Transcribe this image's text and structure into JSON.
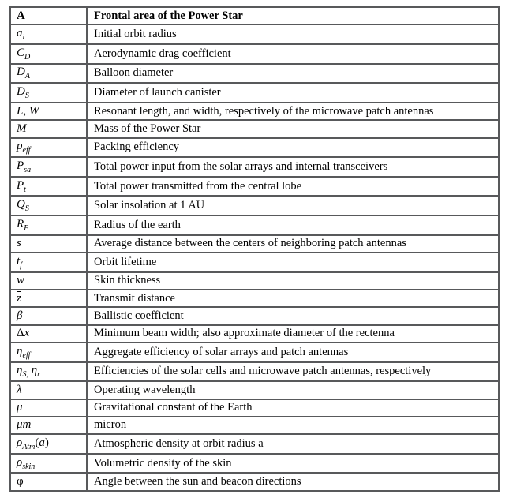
{
  "table": {
    "border_color": "#58595b",
    "text_color": "#000000",
    "header": {
      "symbol": [
        {
          "t": "n",
          "v": "A"
        }
      ],
      "description": "Frontal area of the Power Star"
    },
    "rows": [
      {
        "symbol": [
          {
            "t": "i",
            "v": "a"
          },
          {
            "t": "sub",
            "v": "i"
          }
        ],
        "description": "Initial orbit radius"
      },
      {
        "symbol": [
          {
            "t": "i",
            "v": "C"
          },
          {
            "t": "sub",
            "v": "D"
          }
        ],
        "description": "Aerodynamic drag coefficient"
      },
      {
        "symbol": [
          {
            "t": "i",
            "v": "D"
          },
          {
            "t": "sub",
            "v": "A"
          }
        ],
        "description": "Balloon diameter"
      },
      {
        "symbol": [
          {
            "t": "i",
            "v": "D"
          },
          {
            "t": "sub",
            "v": "S"
          }
        ],
        "description": "Diameter of launch canister"
      },
      {
        "symbol": [
          {
            "t": "i",
            "v": "L"
          },
          {
            "t": "n",
            "v": ", "
          },
          {
            "t": "i",
            "v": "W"
          }
        ],
        "description": "Resonant length, and width, respectively of the microwave patch antennas"
      },
      {
        "symbol": [
          {
            "t": "i",
            "v": "M"
          }
        ],
        "description": "Mass of the Power Star"
      },
      {
        "symbol": [
          {
            "t": "i",
            "v": "p"
          },
          {
            "t": "sub",
            "v": "eff"
          }
        ],
        "description": "Packing efficiency"
      },
      {
        "symbol": [
          {
            "t": "i",
            "v": "P"
          },
          {
            "t": "sub",
            "v": "sa"
          }
        ],
        "description": "Total power input from the solar arrays and internal transceivers"
      },
      {
        "symbol": [
          {
            "t": "i",
            "v": "P"
          },
          {
            "t": "sub",
            "v": "t"
          }
        ],
        "description": "Total power transmitted from the central lobe"
      },
      {
        "symbol": [
          {
            "t": "i",
            "v": "Q"
          },
          {
            "t": "sub",
            "v": "S"
          }
        ],
        "description": "Solar insolation at 1 AU"
      },
      {
        "symbol": [
          {
            "t": "i",
            "v": "R"
          },
          {
            "t": "sub",
            "v": "E"
          }
        ],
        "description": "Radius of the earth"
      },
      {
        "symbol": [
          {
            "t": "i",
            "v": "s"
          }
        ],
        "description": "Average distance between the centers of neighboring patch antennas"
      },
      {
        "symbol": [
          {
            "t": "i",
            "v": "t"
          },
          {
            "t": "sub",
            "v": "f"
          }
        ],
        "description": "Orbit lifetime"
      },
      {
        "symbol": [
          {
            "t": "i",
            "v": "w"
          }
        ],
        "description": "Skin thickness"
      },
      {
        "symbol": [
          {
            "t": "bar",
            "v": "z"
          }
        ],
        "description": "Transmit distance"
      },
      {
        "symbol": [
          {
            "t": "i",
            "v": "β"
          }
        ],
        "description": "Ballistic coefficient"
      },
      {
        "symbol": [
          {
            "t": "n",
            "v": "Δ"
          },
          {
            "t": "i",
            "v": "x"
          }
        ],
        "description": "Minimum beam width; also approximate diameter of the rectenna"
      },
      {
        "symbol": [
          {
            "t": "i",
            "v": "η"
          },
          {
            "t": "sub",
            "v": "eff"
          }
        ],
        "description": "Aggregate efficiency of solar arrays and patch antennas"
      },
      {
        "symbol": [
          {
            "t": "i",
            "v": "η"
          },
          {
            "t": "sub",
            "v": "S,"
          },
          {
            "t": "n",
            "v": " "
          },
          {
            "t": "i",
            "v": "η"
          },
          {
            "t": "sub",
            "v": "r"
          }
        ],
        "description": "Efficiencies of the solar cells and microwave patch antennas, respectively"
      },
      {
        "symbol": [
          {
            "t": "i",
            "v": "λ"
          }
        ],
        "description": "Operating wavelength"
      },
      {
        "symbol": [
          {
            "t": "i",
            "v": "μ"
          }
        ],
        "description": "Gravitational constant of the Earth"
      },
      {
        "symbol": [
          {
            "t": "i",
            "v": "μm"
          }
        ],
        "description": "micron"
      },
      {
        "symbol": [
          {
            "t": "i",
            "v": "ρ"
          },
          {
            "t": "sub",
            "v": "Atm"
          },
          {
            "t": "n",
            "v": "("
          },
          {
            "t": "i",
            "v": "a"
          },
          {
            "t": "n",
            "v": ")"
          }
        ],
        "description": "Atmospheric density at orbit radius a"
      },
      {
        "symbol": [
          {
            "t": "i",
            "v": "ρ"
          },
          {
            "t": "sub",
            "v": "skin"
          }
        ],
        "description": "Volumetric density of the skin"
      },
      {
        "symbol": [
          {
            "t": "n",
            "v": "φ"
          }
        ],
        "description": "Angle between the sun and beacon directions"
      }
    ]
  }
}
